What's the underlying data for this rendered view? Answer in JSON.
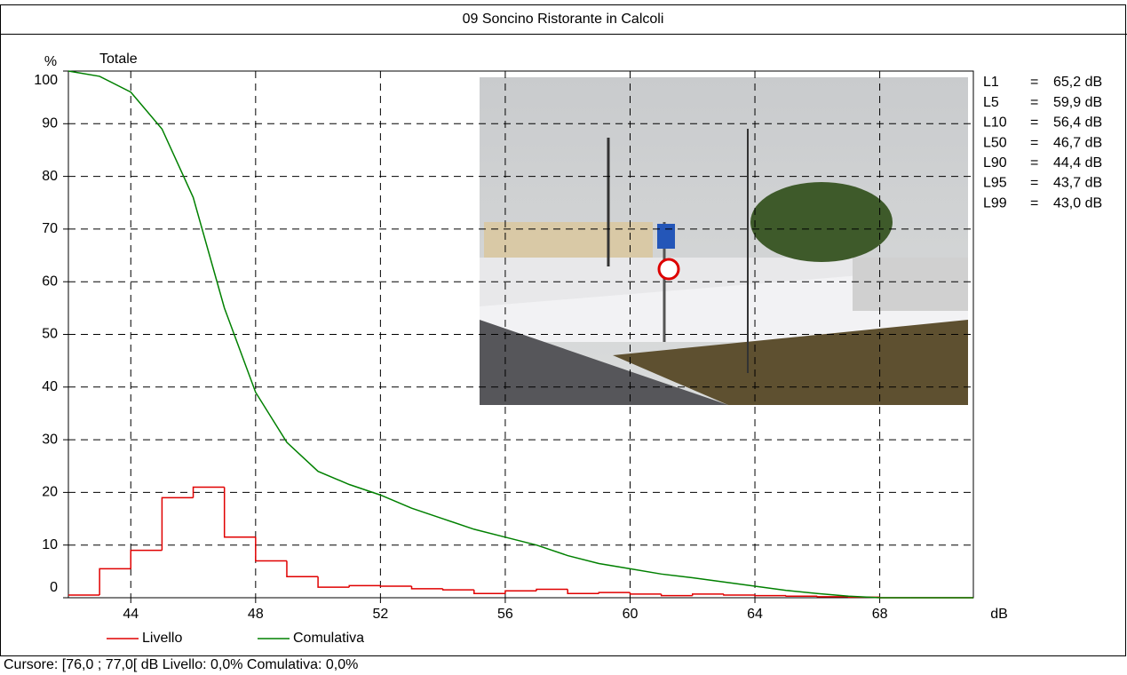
{
  "chart_data": {
    "type": "line",
    "title": "09 Soncino Ristorante in Calcoli",
    "subtitle": "Totale",
    "y_label": "%",
    "x_label": "dB",
    "x": [
      42,
      43,
      44,
      45,
      46,
      47,
      48,
      49,
      50,
      51,
      52,
      53,
      54,
      55,
      56,
      57,
      58,
      59,
      60,
      61,
      62,
      63,
      64,
      65,
      66,
      67,
      68,
      69,
      70,
      71
    ],
    "series": [
      {
        "name": "Livello",
        "color": "#e00000",
        "step": true,
        "values": [
          0.5,
          5.5,
          9,
          19,
          21,
          11.5,
          7,
          4,
          2,
          2.3,
          2.2,
          1.7,
          1.5,
          0.8,
          1.3,
          1.6,
          0.8,
          1.0,
          0.7,
          0.4,
          0.7,
          0.5,
          0.4,
          0.3,
          0.2,
          0.1,
          0,
          0,
          0,
          0
        ]
      },
      {
        "name": "Comulativa",
        "color": "#008000",
        "step": false,
        "values": [
          100,
          99,
          96,
          89,
          76,
          55,
          39,
          29.5,
          24,
          21.5,
          19.5,
          17,
          15,
          13,
          11.5,
          10,
          8,
          6.5,
          5.5,
          4.5,
          3.8,
          3,
          2.2,
          1.4,
          0.8,
          0.3,
          0,
          0,
          0,
          0
        ]
      }
    ],
    "xlim": [
      42,
      71
    ],
    "ylim": [
      0,
      100
    ],
    "xticks": [
      44,
      48,
      52,
      56,
      60,
      64,
      68
    ],
    "yticks": [
      0,
      10,
      20,
      30,
      40,
      50,
      60,
      70,
      80,
      90,
      100
    ],
    "grid": true,
    "stats_separator": "=",
    "stats": [
      {
        "name": "L1",
        "value": "65,2 dB"
      },
      {
        "name": "L5",
        "value": "59,9 dB"
      },
      {
        "name": "L10",
        "value": "56,4 dB"
      },
      {
        "name": "L50",
        "value": "46,7 dB"
      },
      {
        "name": "L90",
        "value": "44,4 dB"
      },
      {
        "name": "L95",
        "value": "43,7 dB"
      },
      {
        "name": "L99",
        "value": "43,0 dB"
      }
    ],
    "cursor": "Cursore: [76,0 ; 77,0[ dB   Livello: 0,0%   Comulativa: 0,0%"
  }
}
